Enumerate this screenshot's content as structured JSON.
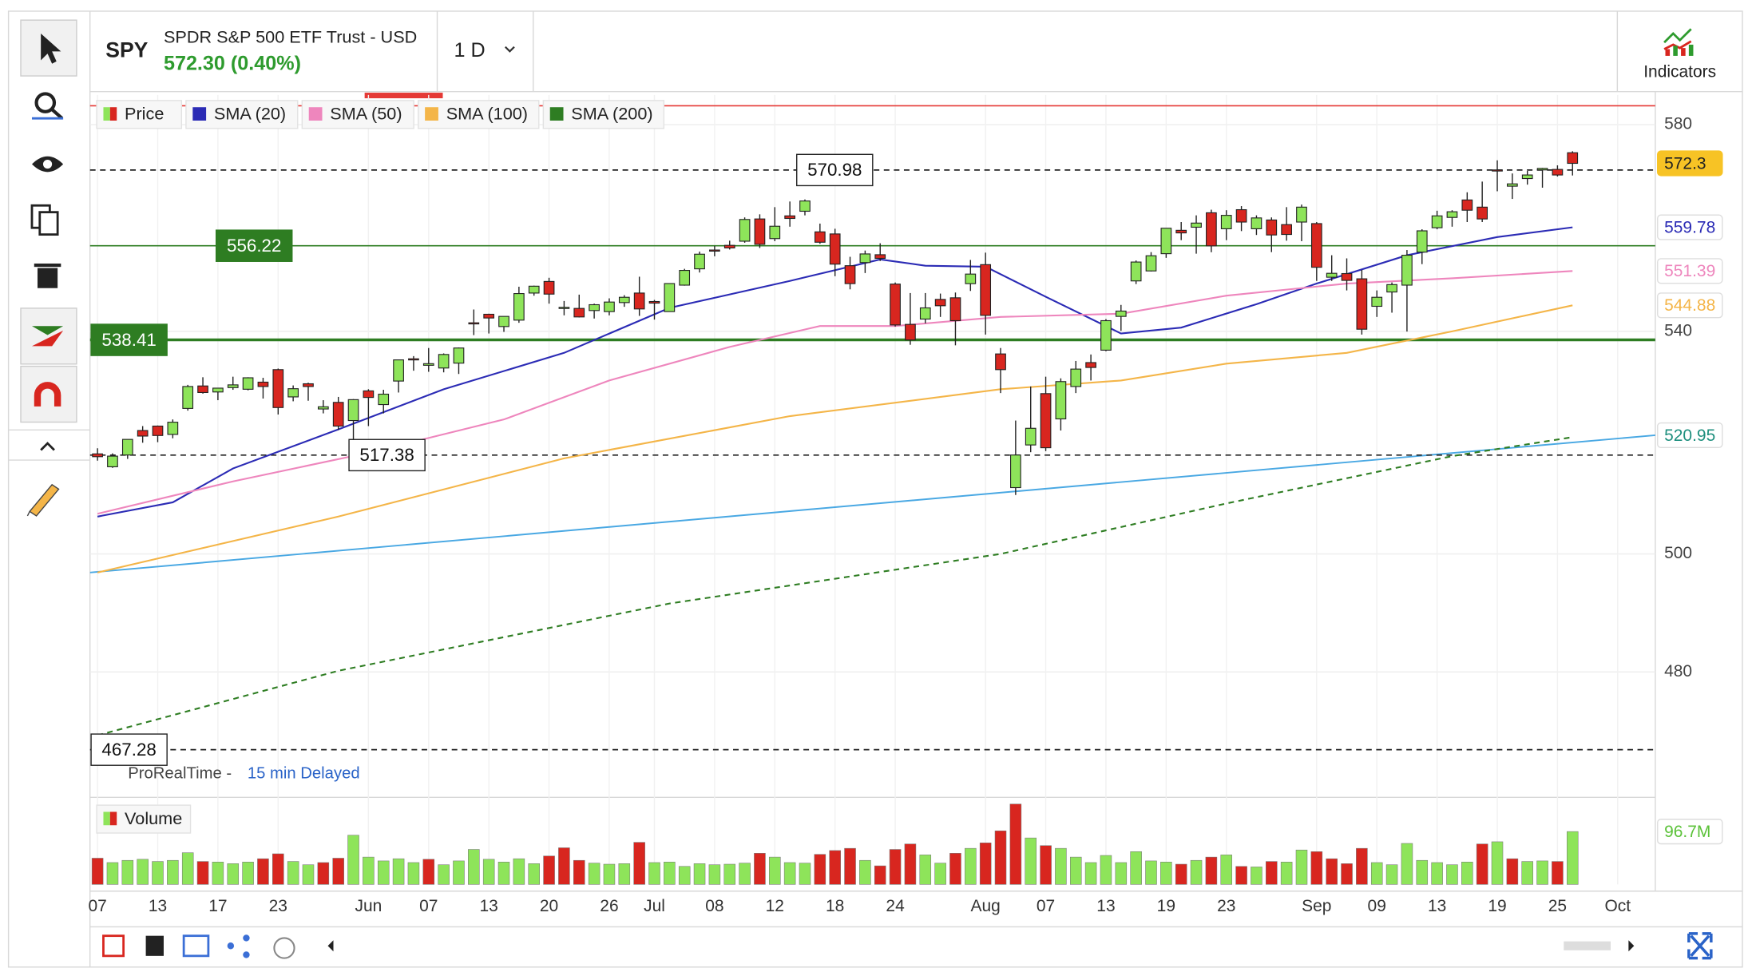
{
  "toolbar": {
    "symbol": "SPY",
    "name": "SPDR S&P 500 ETF Trust - USD",
    "quote": "572.30 (0.40%)",
    "interval": "1 D",
    "indicators": "Indicators"
  },
  "chart_data": {
    "type": "candlestick",
    "name": "Price",
    "up_color": "#8ee45a",
    "down_color": "#d8261f",
    "candles": [
      [
        517.6,
        518.6,
        516.4,
        517.1
      ],
      [
        515.3,
        517.7,
        515.1,
        517.2
      ],
      [
        517.4,
        520.2,
        516.7,
        520.2
      ],
      [
        521.8,
        522.6,
        519.6,
        520.8
      ],
      [
        522.6,
        522.7,
        519.7,
        520.9
      ],
      [
        521.1,
        523.8,
        520.4,
        523.3
      ],
      [
        525.8,
        530.1,
        525.4,
        529.8
      ],
      [
        529.9,
        531.5,
        528.5,
        528.7
      ],
      [
        528.8,
        529.5,
        527.3,
        529.5
      ],
      [
        529.6,
        531.6,
        529.2,
        530.1
      ],
      [
        529.3,
        531.5,
        529.1,
        531.4
      ],
      [
        530.6,
        531.4,
        527.6,
        529.8
      ],
      [
        532.9,
        533.1,
        524.7,
        525.96
      ],
      [
        527.9,
        530,
        527.1,
        529.4
      ],
      [
        530.3,
        530.5,
        527.2,
        529.8
      ],
      [
        525.7,
        527.3,
        524.9,
        526.1
      ],
      [
        526.9,
        527.9,
        521.9,
        522.6
      ],
      [
        523.6,
        527.5,
        518.4,
        527.4
      ],
      [
        529,
        529.3,
        522.6,
        527.8
      ],
      [
        526.5,
        529.2,
        524.9,
        528.4
      ],
      [
        530.8,
        534.7,
        528.7,
        534.7
      ],
      [
        534.9,
        535.4,
        532.7,
        534.7
      ],
      [
        533.7,
        536.9,
        532.5,
        534
      ],
      [
        533.2,
        535.9,
        532.4,
        535.7
      ],
      [
        534.1,
        537,
        532.1,
        536.9
      ],
      [
        541.6,
        544.1,
        539.3,
        541.4
      ],
      [
        543.2,
        543.3,
        539.6,
        542.5
      ],
      [
        540.9,
        542.8,
        539.9,
        542.8
      ],
      [
        542.1,
        548.4,
        541.6,
        547.1
      ],
      [
        547.2,
        548.6,
        546.7,
        548.5
      ],
      [
        549.4,
        550.1,
        545.2,
        547
      ],
      [
        544.4,
        545.7,
        543,
        544.5
      ],
      [
        544.3,
        546.9,
        542.6,
        542.7
      ],
      [
        543.9,
        545.2,
        542.4,
        545
      ],
      [
        543.7,
        546.2,
        543,
        545.5
      ],
      [
        545.4,
        546.8,
        544.6,
        546.4
      ],
      [
        547.2,
        550.3,
        542.9,
        544.2
      ],
      [
        545.6,
        545.9,
        542.2,
        545.3
      ],
      [
        543.7,
        549,
        543.7,
        549
      ],
      [
        548.7,
        551.8,
        548.6,
        551.5
      ],
      [
        551.8,
        555.1,
        551.1,
        554.6
      ],
      [
        555.4,
        556.2,
        554.2,
        555.3
      ],
      [
        556.3,
        557.2,
        555.5,
        555.8
      ],
      [
        557.1,
        561.7,
        556.8,
        561.3
      ],
      [
        561.4,
        562.3,
        555.8,
        556.5
      ],
      [
        557.6,
        563.7,
        557.1,
        559.99
      ],
      [
        562,
        564.8,
        559.9,
        561.5
      ],
      [
        562.9,
        565.2,
        562.1,
        564.9
      ],
      [
        558.9,
        560.5,
        556.6,
        556.9
      ],
      [
        558.5,
        559.5,
        550.4,
        552.7
      ],
      [
        552.4,
        554.1,
        547.9,
        548.99
      ],
      [
        553,
        555.3,
        551,
        554.65
      ],
      [
        554.5,
        556.7,
        553.3,
        553.8
      ],
      [
        548.9,
        549.2,
        540.9,
        541.2
      ],
      [
        541.3,
        547.2,
        537.5,
        538.4
      ],
      [
        542.3,
        547.2,
        541.5,
        544.4
      ],
      [
        546,
        547.1,
        542.7,
        544.8
      ],
      [
        546.3,
        547.3,
        537.4,
        542
      ],
      [
        548.98,
        553.5,
        547.6,
        550.8
      ],
      [
        552.6,
        554.9,
        539.4,
        543
      ],
      [
        535.8,
        536.9,
        528.6,
        532.9
      ],
      [
        511.6,
        523.6,
        510.3,
        517.4
      ],
      [
        519.2,
        529.8,
        517.9,
        522.2
      ],
      [
        528.5,
        531.6,
        518.1,
        518.7
      ],
      [
        523.9,
        531.3,
        521.8,
        530.7
      ],
      [
        529.8,
        534.5,
        528.6,
        533
      ],
      [
        534.2,
        535.7,
        530.9,
        533.3
      ],
      [
        536.5,
        542.3,
        536.3,
        542
      ],
      [
        542.8,
        544.96,
        540.1,
        543.8
      ],
      [
        549.5,
        553.4,
        548.9,
        553.1
      ],
      [
        551.4,
        555,
        551.3,
        554.3
      ],
      [
        554.7,
        559.6,
        553.9,
        559.6
      ],
      [
        559.2,
        560.8,
        557.3,
        558.7
      ],
      [
        559.8,
        562.1,
        554.7,
        560.6
      ],
      [
        562.6,
        563.2,
        554.98,
        556.2
      ],
      [
        559.5,
        563.1,
        557.3,
        562.1
      ],
      [
        563.2,
        563.9,
        559.05,
        560.8
      ],
      [
        559.5,
        562.1,
        558.3,
        561.6
      ],
      [
        561.2,
        561.7,
        555,
        558.3
      ],
      [
        560.3,
        563.7,
        557.2,
        558.4
      ],
      [
        560.8,
        564.2,
        557.1,
        563.7
      ],
      [
        560.5,
        560.8,
        549.5,
        552.1
      ],
      [
        550.2,
        554.4,
        549.5,
        550.95
      ],
      [
        550.9,
        553.8,
        547.7,
        549.6
      ],
      [
        549.9,
        551.6,
        539.4,
        540.4
      ],
      [
        544.7,
        547.7,
        542.7,
        546.4
      ],
      [
        547.4,
        549.2,
        543.5,
        548.8
      ],
      [
        548.7,
        555.4,
        539.96,
        554.4
      ],
      [
        555,
        559.4,
        552.7,
        559.1
      ],
      [
        559.7,
        563,
        559.4,
        562
      ],
      [
        561.7,
        563.1,
        559.9,
        562.8
      ],
      [
        565.1,
        566.6,
        560.8,
        563.1
      ],
      [
        563.7,
        568.7,
        560.8,
        561.4
      ],
      [
        571,
        572.9,
        566.8,
        570.98
      ],
      [
        567.8,
        570.3,
        565.3,
        568.25
      ],
      [
        569.3,
        570.8,
        568.1,
        570
      ],
      [
        571,
        571.4,
        567.5,
        571.3
      ],
      [
        571.1,
        571.9,
        569.7,
        570
      ],
      [
        574.4,
        574.7,
        569.9,
        572.3
      ]
    ],
    "yscale": "log",
    "ylim": [
      460,
      586
    ],
    "yticks": [
      480,
      500,
      540,
      580
    ],
    "xlim": [
      -0.5,
      103.5
    ],
    "xticks": [
      {
        "value": 0,
        "label": "07"
      },
      {
        "value": 4,
        "label": "13"
      },
      {
        "value": 8,
        "label": "17"
      },
      {
        "value": 12,
        "label": "23"
      },
      {
        "value": 18,
        "label": "Jun"
      },
      {
        "value": 22,
        "label": "07"
      },
      {
        "value": 26,
        "label": "13"
      },
      {
        "value": 30,
        "label": "20"
      },
      {
        "value": 34,
        "label": "26"
      },
      {
        "value": 37,
        "label": "Jul"
      },
      {
        "value": 41,
        "label": "08"
      },
      {
        "value": 45,
        "label": "12"
      },
      {
        "value": 49,
        "label": "18"
      },
      {
        "value": 53,
        "label": "24"
      },
      {
        "value": 59,
        "label": "Aug"
      },
      {
        "value": 63,
        "label": "07"
      },
      {
        "value": 67,
        "label": "13"
      },
      {
        "value": 71,
        "label": "19"
      },
      {
        "value": 75,
        "label": "23"
      },
      {
        "value": 81,
        "label": "Sep"
      },
      {
        "value": 85,
        "label": "09"
      },
      {
        "value": 89,
        "label": "13"
      },
      {
        "value": 93,
        "label": "19"
      },
      {
        "value": 97,
        "label": "25"
      },
      {
        "value": 101,
        "label": "Oct"
      }
    ],
    "grid": true,
    "series": [
      {
        "name": "SMA (20)",
        "color": "#2b2bb5",
        "x": [
          0,
          5,
          9,
          16,
          23,
          31,
          38,
          46,
          52,
          55,
          59,
          63,
          68,
          72,
          77,
          81,
          87,
          93,
          98
        ],
        "values": [
          506.5,
          509,
          515,
          522,
          529.3,
          536,
          544.4,
          549.5,
          553.6,
          552.4,
          552.2,
          546.5,
          539.6,
          540.7,
          545.1,
          549,
          554.4,
          557.9,
          559.78
        ]
      },
      {
        "name": "SMA (50)",
        "color": "#ee86bd",
        "x": [
          0,
          9,
          18,
          27,
          34,
          42,
          48,
          53,
          60,
          68,
          75,
          83,
          90,
          98
        ],
        "values": [
          507,
          512.7,
          517.8,
          523.8,
          530.9,
          537.1,
          541,
          541,
          542.7,
          543.3,
          546.7,
          549,
          550,
          551.39
        ]
      },
      {
        "name": "SMA (100)",
        "color": "#f4b548",
        "x": [
          0,
          16,
          31,
          46,
          60,
          68,
          75,
          83,
          90,
          98
        ],
        "values": [
          496.8,
          506.5,
          516.8,
          524.4,
          529.3,
          530.9,
          534,
          536,
          540,
          544.88
        ]
      },
      {
        "name": "SMA (200)",
        "color": "#2e7d22",
        "dashed": true,
        "x": [
          0,
          16,
          38,
          60,
          75,
          90,
          98
        ],
        "values": [
          469.6,
          480.2,
          491.5,
          500,
          508.8,
          517.2,
          520.6
        ]
      }
    ],
    "trendline": {
      "color": "#49a8e3",
      "label_color": "#1e8f7e",
      "x": [
        -0.5,
        103.5
      ],
      "values": [
        496.8,
        520.95
      ]
    },
    "levels": [
      {
        "value": 583.8,
        "color": "#e53935"
      },
      {
        "value": 570.98,
        "color": "#222222",
        "dashed": true,
        "label": "box"
      },
      {
        "value": 556.22,
        "color": "#2e7d22",
        "label": "filled"
      },
      {
        "value": 538.41,
        "color": "#2e7d22",
        "thick": true,
        "label": "filled"
      },
      {
        "value": 517.38,
        "color": "#222222",
        "dashed": true,
        "label": "box"
      },
      {
        "value": 467.28,
        "color": "#222222",
        "dashed": true,
        "label": "box"
      }
    ],
    "volume": {
      "name": "Volume",
      "values": [
        48,
        40,
        44,
        46,
        42,
        44,
        58,
        42,
        41,
        38,
        41,
        47,
        56,
        42,
        36,
        40,
        48,
        90,
        50,
        43,
        47,
        40,
        46,
        36,
        43,
        64,
        46,
        41,
        47,
        38,
        52,
        67,
        44,
        39,
        37,
        38,
        77,
        40,
        41,
        33,
        38,
        36,
        37,
        39,
        57,
        50,
        40,
        39,
        55,
        62,
        66,
        44,
        34,
        64,
        74,
        54,
        39,
        57,
        66,
        76,
        98,
        147,
        85,
        71,
        66,
        50,
        40,
        53,
        40,
        60,
        43,
        41,
        37,
        44,
        50,
        54,
        33,
        32,
        42,
        41,
        63,
        60,
        47,
        38,
        66,
        40,
        36,
        75,
        44,
        40,
        36,
        41,
        74,
        78,
        47,
        42,
        43,
        42,
        96.7
      ],
      "last_label": "96.7M"
    },
    "source": "ProRealTime -",
    "delay": "15 min Delayed"
  }
}
